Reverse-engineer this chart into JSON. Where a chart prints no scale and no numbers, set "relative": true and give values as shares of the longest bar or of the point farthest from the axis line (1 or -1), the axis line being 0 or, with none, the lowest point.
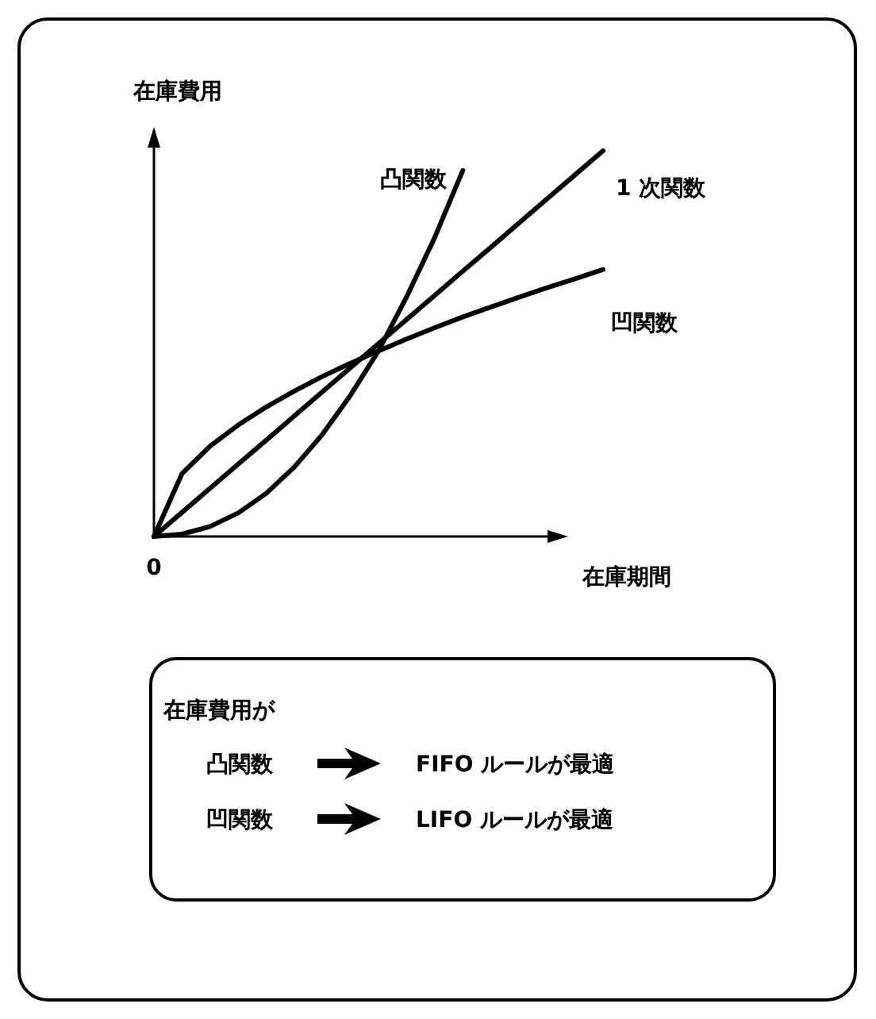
{
  "chart_data": {
    "type": "line",
    "relative": true,
    "xlabel": "在庫期間",
    "ylabel": "在庫費用",
    "categories": [
      null,
      null,
      null,
      null,
      null,
      null,
      null,
      null,
      null,
      null,
      null,
      null,
      null,
      null,
      null,
      null,
      null
    ],
    "series": [
      {
        "name": "凸関数",
        "color": "#000000",
        "values": [
          0,
          0.006,
          0.026,
          0.061,
          0.112,
          0.18,
          0.264,
          0.366,
          0.481,
          0.621,
          0.775,
          0.949,
          null,
          null,
          null,
          null,
          null
        ]
      },
      {
        "name": "1 次関数",
        "color": "#000000",
        "values": [
          0,
          0.0625,
          0.125,
          0.1875,
          0.25,
          0.3125,
          0.375,
          0.4375,
          0.5,
          0.5625,
          0.625,
          0.6875,
          0.75,
          0.8125,
          0.875,
          0.9375,
          1
        ]
      },
      {
        "name": "凹関数",
        "color": "#000000",
        "values": [
          0,
          0.163,
          0.234,
          0.289,
          0.336,
          0.377,
          0.415,
          0.449,
          0.481,
          0.512,
          0.541,
          0.569,
          0.595,
          0.62,
          0.645,
          0.668,
          0.692
        ]
      }
    ],
    "annotations": [
      "0",
      "在庫費用が",
      "凸関数",
      "FIFO ルールが最適",
      "凹関数",
      "LIFO ルールが最適"
    ]
  }
}
